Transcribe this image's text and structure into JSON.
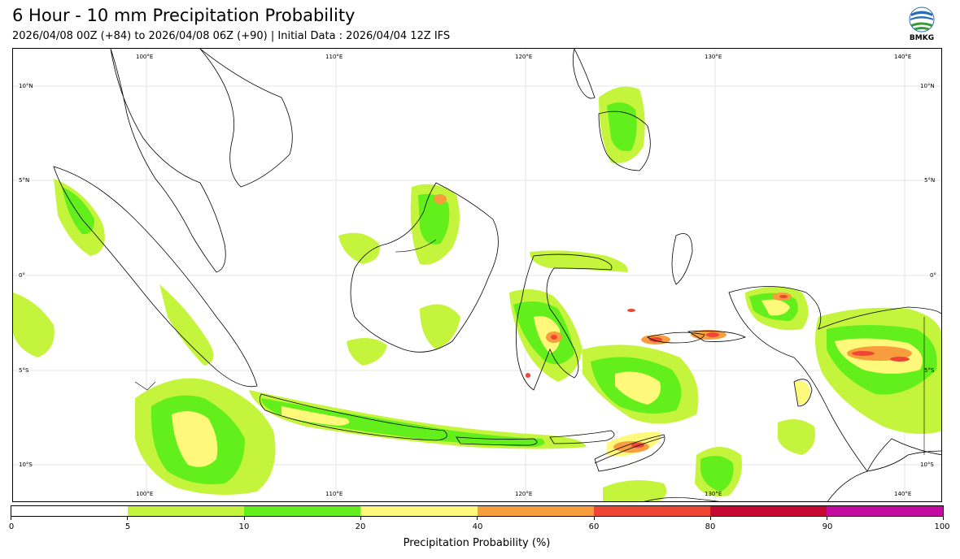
{
  "header": {
    "title": "6 Hour - 10 mm Precipitation Probability",
    "subtitle": "2026/04/08 00Z (+84) to 2026/04/08 06Z (+90) | Initial Data : 2026/04/04 12Z IFS",
    "logo_text": "BMKG"
  },
  "map": {
    "lon_labels": [
      "100°E",
      "110°E",
      "120°E",
      "130°E",
      "140°E"
    ],
    "lat_labels": [
      "10°N",
      "5°N",
      "0°",
      "5°S",
      "10°S"
    ],
    "land_outline_color": "#000000",
    "region": "Indonesia / Maritime Continent"
  },
  "legend": {
    "title": "Precipitation Probability (%)",
    "ticks": [
      "0",
      "5",
      "10",
      "20",
      "40",
      "60",
      "80",
      "90",
      "100"
    ],
    "colors": [
      "#ffffff",
      "#c4f53c",
      "#63ef1c",
      "#fef97a",
      "#f79d3e",
      "#ef4535",
      "#c60833",
      "#c40ba0"
    ]
  }
}
